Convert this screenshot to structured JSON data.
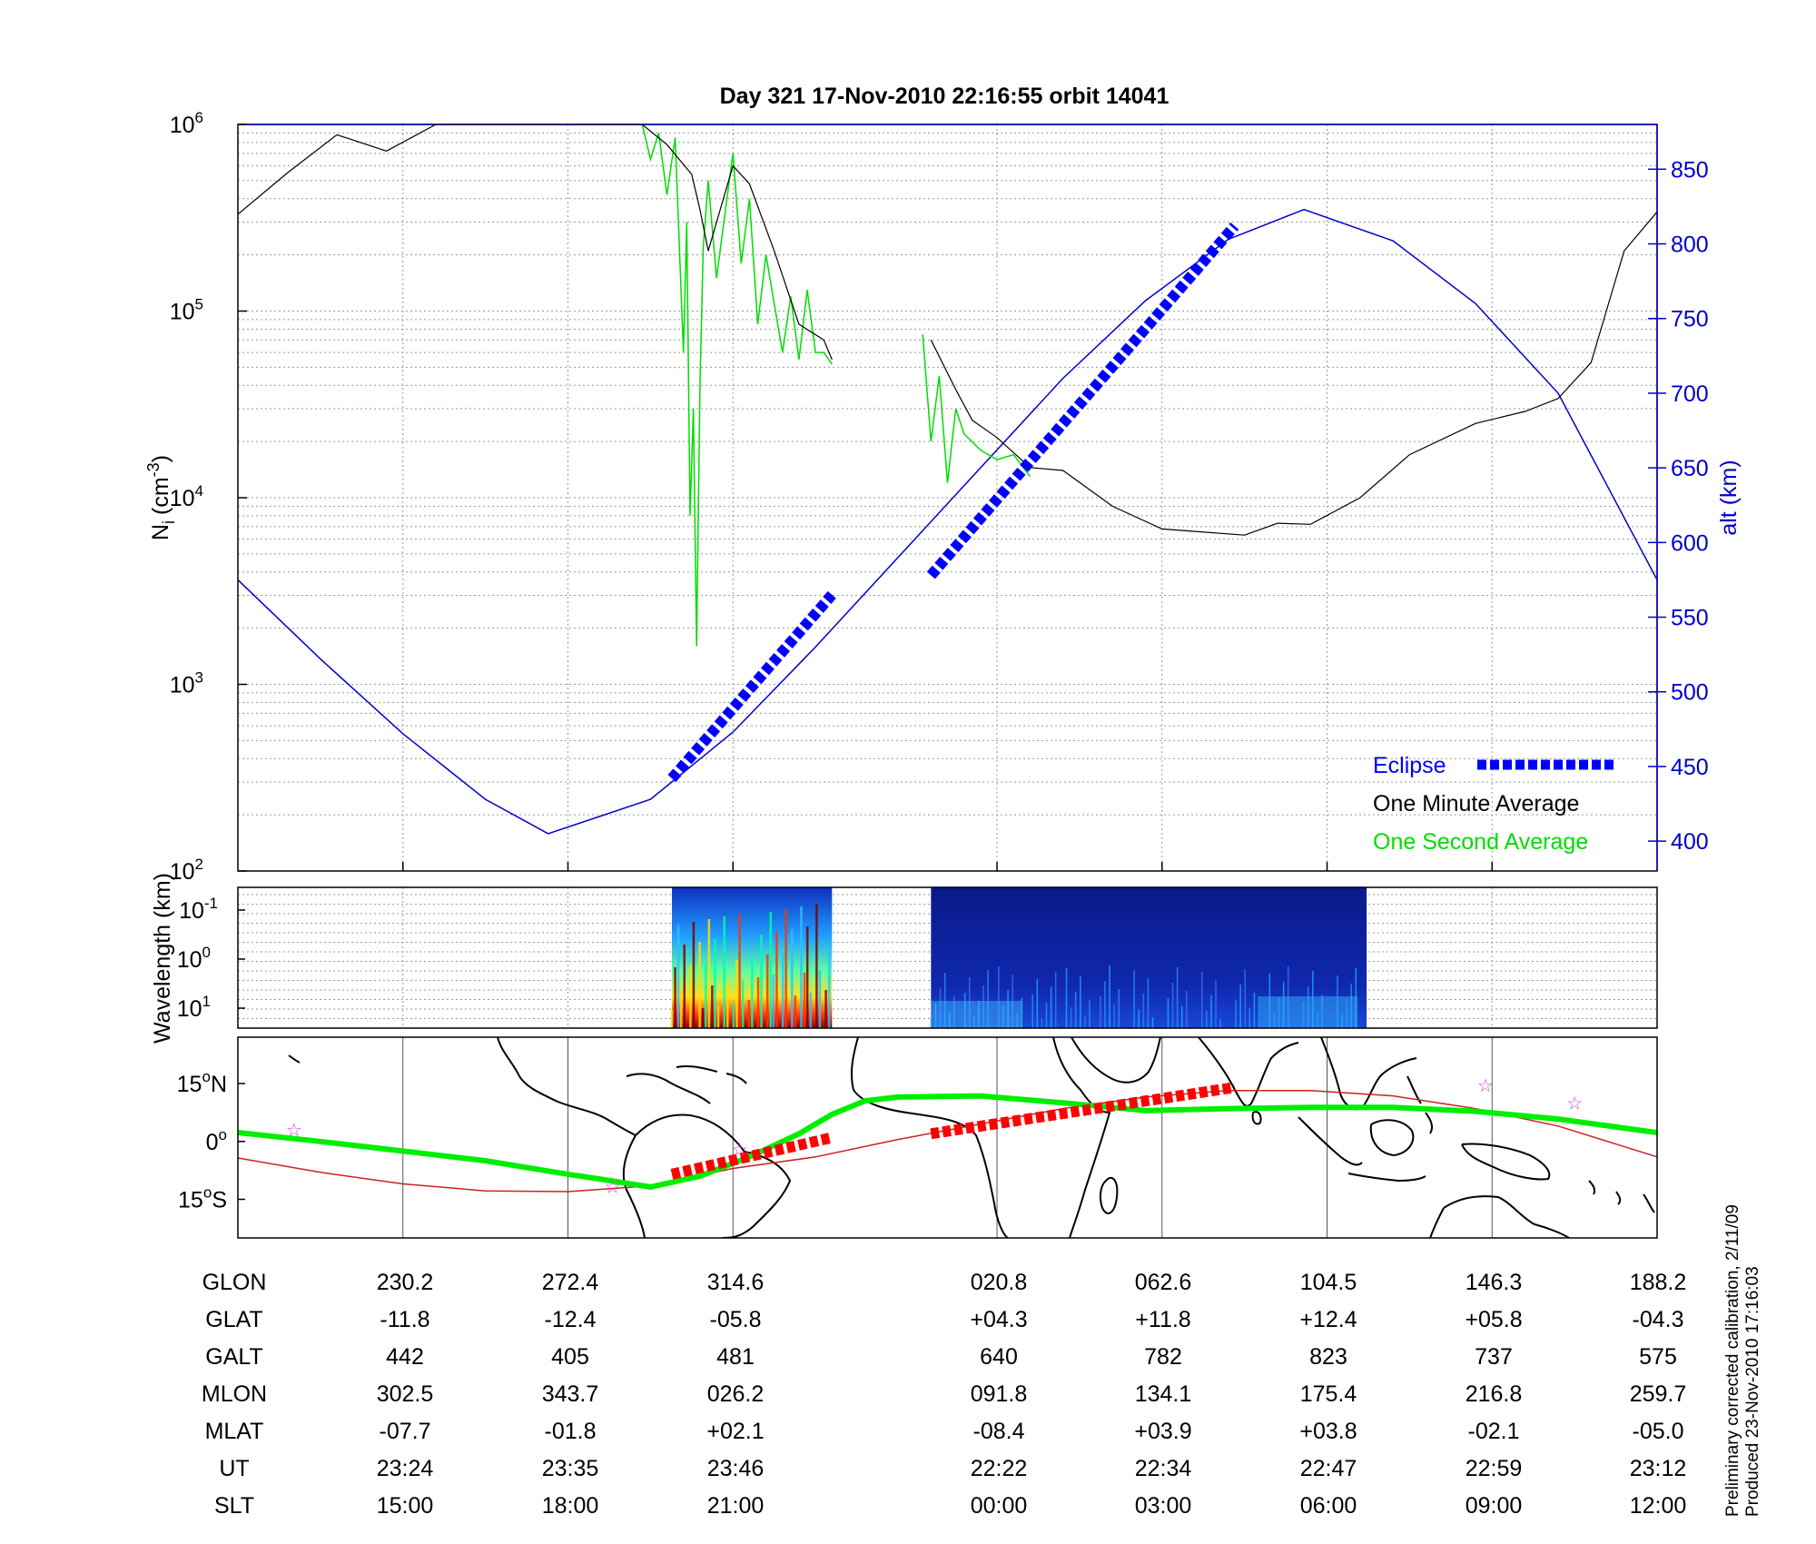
{
  "title": "Day 321  17-Nov-2010 22:16:55   orbit 14041",
  "footnote": [
    "Preliminary corrected calibration, 2/11/09",
    "Produced 23-Nov-2010 17:16:03"
  ],
  "colors": {
    "one_minute": "#000000",
    "one_second": "#00dd00",
    "altitude": "#0000cc",
    "eclipse": "#0000ff",
    "ground_track": "#00ee00",
    "eclipse_track": "#ff0000",
    "magnetic_equator": "#cc2222",
    "stars": "#cc44cc"
  },
  "chart_data": [
    {
      "type": "line",
      "name": "ion density and altitude",
      "ylabel_base": "N",
      "ylabel_sub": "i",
      "ylabel_unit": "(cm",
      "ylabel_sup": "-3",
      "ylabel_close": ")",
      "yscale": "log",
      "ylim": [
        100,
        1000000
      ],
      "ytick_labels": [
        {
          "base": "10",
          "exp": "2",
          "value": 100
        },
        {
          "base": "10",
          "exp": "3",
          "value": 1000
        },
        {
          "base": "10",
          "exp": "4",
          "value": 10000
        },
        {
          "base": "10",
          "exp": "5",
          "value": 100000
        },
        {
          "base": "10",
          "exp": "6",
          "value": 1000000
        }
      ],
      "y2label": "alt (km)",
      "y2lim": [
        380,
        880
      ],
      "y2ticks": [
        400,
        450,
        500,
        550,
        600,
        650,
        700,
        750,
        800,
        850
      ],
      "xlim": [
        0,
        8.6
      ],
      "grid": true,
      "legend": {
        "placement": "bottom-right",
        "entries": [
          "Eclipse",
          "One Minute Average",
          "One Second Average"
        ]
      },
      "series": [
        {
          "name": "One Minute Average",
          "x": [
            0,
            0.3,
            0.6,
            0.9,
            1.2,
            1.6,
            1.9,
            2.45,
            2.6,
            2.75,
            2.8,
            2.85,
            3.0,
            3.1,
            3.25,
            3.4,
            3.55,
            3.6,
            3.63,
            3.7,
            3.8,
            4.1,
            4.2,
            4.35,
            4.45,
            4.6,
            4.8,
            5.0,
            5.3,
            5.6,
            5.8,
            6.1,
            6.3,
            6.5,
            6.8,
            7.1,
            7.5,
            7.8,
            8.0,
            8.2,
            8.4,
            8.6
          ],
          "y": [
            330000,
            550000,
            880000,
            720000,
            1000000,
            1000000,
            1000000,
            1000000,
            780000,
            540000,
            350000,
            210000,
            600000,
            480000,
            210000,
            85000,
            70000,
            55000,
            null,
            null,
            null,
            null,
            70000,
            38000,
            26000,
            21000,
            14500,
            14000,
            9000,
            6800,
            6600,
            6300,
            7300,
            7200,
            10000,
            17000,
            25000,
            29000,
            34000,
            53000,
            210000,
            340000
          ]
        },
        {
          "name": "One Second Average",
          "x": [
            2.45,
            2.5,
            2.55,
            2.6,
            2.65,
            2.7,
            2.72,
            2.74,
            2.76,
            2.78,
            2.8,
            2.82,
            2.85,
            2.9,
            3.0,
            3.05,
            3.1,
            3.15,
            3.2,
            3.3,
            3.35,
            3.4,
            3.45,
            3.5,
            3.55,
            3.6,
            3.65,
            4.1,
            4.15,
            4.2,
            4.25,
            4.3,
            4.35,
            4.4,
            4.5,
            4.6,
            4.7,
            4.8
          ],
          "y": [
            1000000,
            650000,
            900000,
            420000,
            850000,
            60000,
            300000,
            8000,
            30000,
            1600,
            40000,
            220000,
            500000,
            150000,
            700000,
            180000,
            400000,
            85000,
            200000,
            60000,
            120000,
            55000,
            130000,
            60000,
            60000,
            52000,
            null,
            null,
            75000,
            20000,
            45000,
            12000,
            30000,
            22000,
            18000,
            16000,
            17000,
            13000
          ]
        },
        {
          "name": "altitude",
          "axis": "right",
          "x": [
            0,
            0.5,
            1.0,
            1.5,
            1.88,
            2.5,
            3.0,
            3.5,
            4.0,
            4.5,
            5.0,
            5.5,
            6.0,
            6.46,
            7.0,
            7.5,
            8.0,
            8.6
          ],
          "y": [
            575,
            522,
            472,
            428,
            405,
            428,
            473,
            530,
            590,
            650,
            710,
            762,
            803,
            823,
            802,
            760,
            700,
            575
          ]
        },
        {
          "name": "Eclipse",
          "axis": "right",
          "segments": [
            {
              "x": [
                2.63,
                3.6
              ],
              "y": [
                442,
                565
              ]
            },
            {
              "x": [
                4.2,
                6.04
              ],
              "y": [
                578,
                812
              ]
            }
          ]
        }
      ]
    },
    {
      "type": "heatmap",
      "name": "wavelength spectrogram",
      "ylabel": "Wavelength (km)",
      "yscale": "log",
      "ytick_labels": [
        {
          "base": "10",
          "exp": "-1"
        },
        {
          "base": "10",
          "exp": "0"
        },
        {
          "base": "10",
          "exp": "1"
        }
      ],
      "segments": [
        {
          "x": [
            2.63,
            3.6
          ],
          "intensity": "high"
        },
        {
          "x": [
            4.2,
            6.84
          ],
          "intensity": "low"
        }
      ]
    },
    {
      "type": "scatter",
      "name": "ground track map",
      "ytick_labels": [
        {
          "num": "15",
          "deg": "o",
          "hemi": "N",
          "value": 15
        },
        {
          "num": "0",
          "deg": "o",
          "hemi": "",
          "value": 0
        },
        {
          "num": "15",
          "deg": "o",
          "hemi": "S",
          "value": -15
        }
      ],
      "ylim": [
        -25,
        27
      ],
      "series": [
        {
          "name": "ground track",
          "x": [
            0,
            0.5,
            1.0,
            1.5,
            2.0,
            2.2,
            2.5,
            2.8,
            3.1,
            3.4,
            3.6,
            3.8,
            4.0,
            4.5,
            5.0,
            5.5,
            6.0,
            6.5,
            7.0,
            7.5,
            8.0,
            8.6
          ],
          "y": [
            2.3,
            0,
            -2.5,
            -5,
            -8.5,
            -9.8,
            -11.8,
            -9,
            -4,
            2,
            7,
            10.5,
            11.5,
            11.8,
            10,
            8,
            8.5,
            8.8,
            8.8,
            7.8,
            5.8,
            2.3
          ]
        },
        {
          "name": "magnetic equator",
          "x": [
            0,
            0.5,
            1.0,
            1.5,
            2.0,
            2.5,
            3.0,
            3.5,
            4.0,
            4.5,
            5.0,
            5.5,
            6.0,
            6.5,
            7.0,
            7.5,
            8.0,
            8.6
          ],
          "y": [
            -4.3,
            -8,
            -11,
            -12.8,
            -13,
            -11.5,
            -7,
            -4,
            0.5,
            4.5,
            8.5,
            11.5,
            13.2,
            13.2,
            11.8,
            8.5,
            4,
            -4
          ]
        },
        {
          "name": "eclipse track",
          "segments": [
            {
              "x": [
                2.63,
                3.6
              ],
              "y": [
                -8.5,
                1
              ]
            },
            {
              "x": [
                4.2,
                6.04
              ],
              "y": [
                2,
                14
              ]
            }
          ]
        },
        {
          "name": "stars",
          "x": [
            0.34,
            2.27,
            3.04,
            7.56,
            8.1
          ],
          "y": [
            3,
            -11.7,
            -2,
            14.5,
            10
          ]
        }
      ]
    }
  ],
  "table": {
    "row_labels": [
      "GLON",
      "GLAT",
      "GALT",
      "MLON",
      "MLAT",
      "UT",
      "SLT"
    ],
    "columns": [
      [
        "230.2",
        "-11.8",
        "442",
        "302.5",
        "-07.7",
        "23:24",
        "15:00"
      ],
      [
        "272.4",
        "-12.4",
        "405",
        "343.7",
        "-01.8",
        "23:35",
        "18:00"
      ],
      [
        "314.6",
        "-05.8",
        "481",
        "026.2",
        "+02.1",
        "23:46",
        "21:00"
      ],
      [
        "020.8",
        "+04.3",
        "640",
        "091.8",
        "-08.4",
        "22:22",
        "00:00"
      ],
      [
        "062.6",
        "+11.8",
        "782",
        "134.1",
        "+03.9",
        "22:34",
        "03:00"
      ],
      [
        "104.5",
        "+12.4",
        "823",
        "175.4",
        "+03.8",
        "22:47",
        "06:00"
      ],
      [
        "146.3",
        "+05.8",
        "737",
        "216.8",
        "-02.1",
        "22:59",
        "09:00"
      ],
      [
        "188.2",
        "-04.3",
        "575",
        "259.7",
        "-05.0",
        "23:12",
        "12:00"
      ]
    ]
  }
}
